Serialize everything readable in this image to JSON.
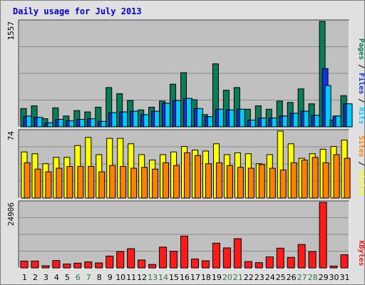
{
  "title": "Daily usage for July 2013",
  "colors": {
    "pages": "#0a7d5b",
    "files": "#1133dd",
    "hits": "#00ccff",
    "visits": "#ffff00",
    "sites": "#ff8000",
    "kbytes": "#ff1a1a",
    "weekday_label": "#000000",
    "weekend_label": "#2a7a3a",
    "plot_bg": "#c0c0c0",
    "frame_bg": "#e0e0e0",
    "grid": "#8a8a8a"
  },
  "chart_data": [
    {
      "type": "bar",
      "panel": "hits-files-pages",
      "ymax_label": "1557",
      "ylim": [
        0,
        1557
      ],
      "legend": [
        {
          "name": "Pages",
          "color": "#0a7d5b"
        },
        {
          "name": "Files",
          "color": "#1133dd"
        },
        {
          "name": "Hits",
          "color": "#00ccff"
        }
      ],
      "separator": "/",
      "categories": [
        "1",
        "2",
        "3",
        "4",
        "5",
        "6",
        "7",
        "8",
        "9",
        "10",
        "11",
        "12",
        "13",
        "14",
        "15",
        "16",
        "17",
        "18",
        "19",
        "20",
        "21",
        "22",
        "23",
        "24",
        "25",
        "26",
        "27",
        "28",
        "29",
        "30",
        "31"
      ],
      "weekend_days": [
        "6",
        "7",
        "13",
        "14",
        "20",
        "21",
        "27",
        "28"
      ],
      "series": [
        {
          "name": "Pages",
          "values": [
            270,
            310,
            120,
            280,
            160,
            240,
            220,
            290,
            580,
            490,
            390,
            250,
            290,
            380,
            630,
            800,
            400,
            180,
            930,
            540,
            580,
            260,
            310,
            260,
            380,
            360,
            560,
            340,
            1557,
            100,
            460
          ]
        },
        {
          "name": "Files",
          "values": [
            150,
            140,
            60,
            110,
            90,
            110,
            120,
            80,
            210,
            220,
            230,
            180,
            230,
            350,
            390,
            420,
            270,
            150,
            260,
            250,
            260,
            100,
            130,
            130,
            160,
            200,
            230,
            170,
            860,
            160,
            340
          ]
        },
        {
          "name": "Hits",
          "values": [
            160,
            140,
            60,
            110,
            90,
            110,
            120,
            80,
            210,
            220,
            230,
            180,
            230,
            350,
            390,
            420,
            270,
            150,
            260,
            250,
            260,
            100,
            130,
            130,
            160,
            200,
            230,
            170,
            610,
            160,
            340
          ]
        }
      ]
    },
    {
      "type": "bar",
      "panel": "visits-sites",
      "ymax_label": "74",
      "ylim": [
        0,
        74
      ],
      "legend": [
        {
          "name": "Sites",
          "color": "#ff8000"
        },
        {
          "name": "Visits",
          "color": "#ffff00"
        }
      ],
      "separator": "/",
      "categories": [
        "1",
        "2",
        "3",
        "4",
        "5",
        "6",
        "7",
        "8",
        "9",
        "10",
        "11",
        "12",
        "13",
        "14",
        "15",
        "16",
        "17",
        "18",
        "19",
        "20",
        "21",
        "22",
        "23",
        "24",
        "25",
        "26",
        "27",
        "28",
        "29",
        "30",
        "31"
      ],
      "series": [
        {
          "name": "Visits",
          "values": [
            51,
            49,
            38,
            45,
            45,
            58,
            67,
            48,
            66,
            66,
            60,
            48,
            42,
            48,
            51,
            57,
            53,
            52,
            60,
            48,
            50,
            49,
            38,
            48,
            74,
            60,
            44,
            49,
            54,
            57,
            64
          ]
        },
        {
          "name": "Sites",
          "values": [
            39,
            32,
            29,
            33,
            35,
            35,
            35,
            29,
            36,
            35,
            33,
            34,
            32,
            39,
            36,
            50,
            47,
            38,
            39,
            36,
            34,
            33,
            37,
            33,
            31,
            39,
            42,
            45,
            39,
            48,
            44
          ]
        }
      ]
    },
    {
      "type": "bar",
      "panel": "kbytes",
      "ymax_label": "24906",
      "ylim": [
        0,
        24906
      ],
      "legend": [
        {
          "name": "KBytes",
          "color": "#ff1a1a"
        }
      ],
      "categories": [
        "1",
        "2",
        "3",
        "4",
        "5",
        "6",
        "7",
        "8",
        "9",
        "10",
        "11",
        "12",
        "13",
        "14",
        "15",
        "16",
        "17",
        "18",
        "19",
        "20",
        "21",
        "22",
        "23",
        "24",
        "25",
        "26",
        "27",
        "28",
        "29",
        "30",
        "31"
      ],
      "series": [
        {
          "name": "KBytes",
          "values": [
            2600,
            2600,
            800,
            2800,
            1500,
            1800,
            2300,
            1900,
            4500,
            6200,
            7300,
            3000,
            1300,
            7900,
            6300,
            12100,
            3400,
            2700,
            9400,
            7600,
            11100,
            2400,
            2000,
            4200,
            7500,
            4000,
            8900,
            6200,
            24906,
            700,
            5000
          ]
        }
      ]
    }
  ]
}
